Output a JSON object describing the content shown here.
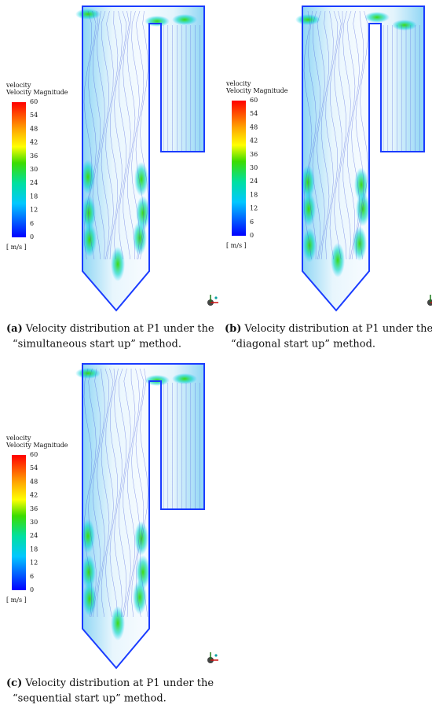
{
  "panels": [
    {
      "legend": {
        "title": "velocity",
        "subtitle": "Velocity Magnitude",
        "ticks": [
          "60",
          "54",
          "48",
          "42",
          "36",
          "30",
          "24",
          "18",
          "12",
          "6",
          "0"
        ],
        "unit": "[ m/s ]"
      },
      "caption": {
        "label": "(a)",
        "line1": "Velocity distribution at P1 under the",
        "line2": "“simultaneous start up” method."
      }
    },
    {
      "legend": {
        "title": "velocity",
        "subtitle": "Velocity Magnitude",
        "ticks": [
          "60",
          "54",
          "48",
          "42",
          "36",
          "30",
          "24",
          "18",
          "12",
          "6",
          "0"
        ],
        "unit": "[ m/s ]"
      },
      "caption": {
        "label": "(b)",
        "line1": "Velocity distribution at P1 under the",
        "line2": "“diagonal start up” method."
      }
    },
    {
      "legend": {
        "title": "velocity",
        "subtitle": "Velocity Magnitude",
        "ticks": [
          "60",
          "54",
          "48",
          "42",
          "36",
          "30",
          "24",
          "18",
          "12",
          "6",
          "0"
        ],
        "unit": "[ m/s ]"
      },
      "caption": {
        "label": "(c)",
        "line1": "Velocity distribution at P1 under the",
        "line2": "“sequential start up” method."
      }
    }
  ]
}
